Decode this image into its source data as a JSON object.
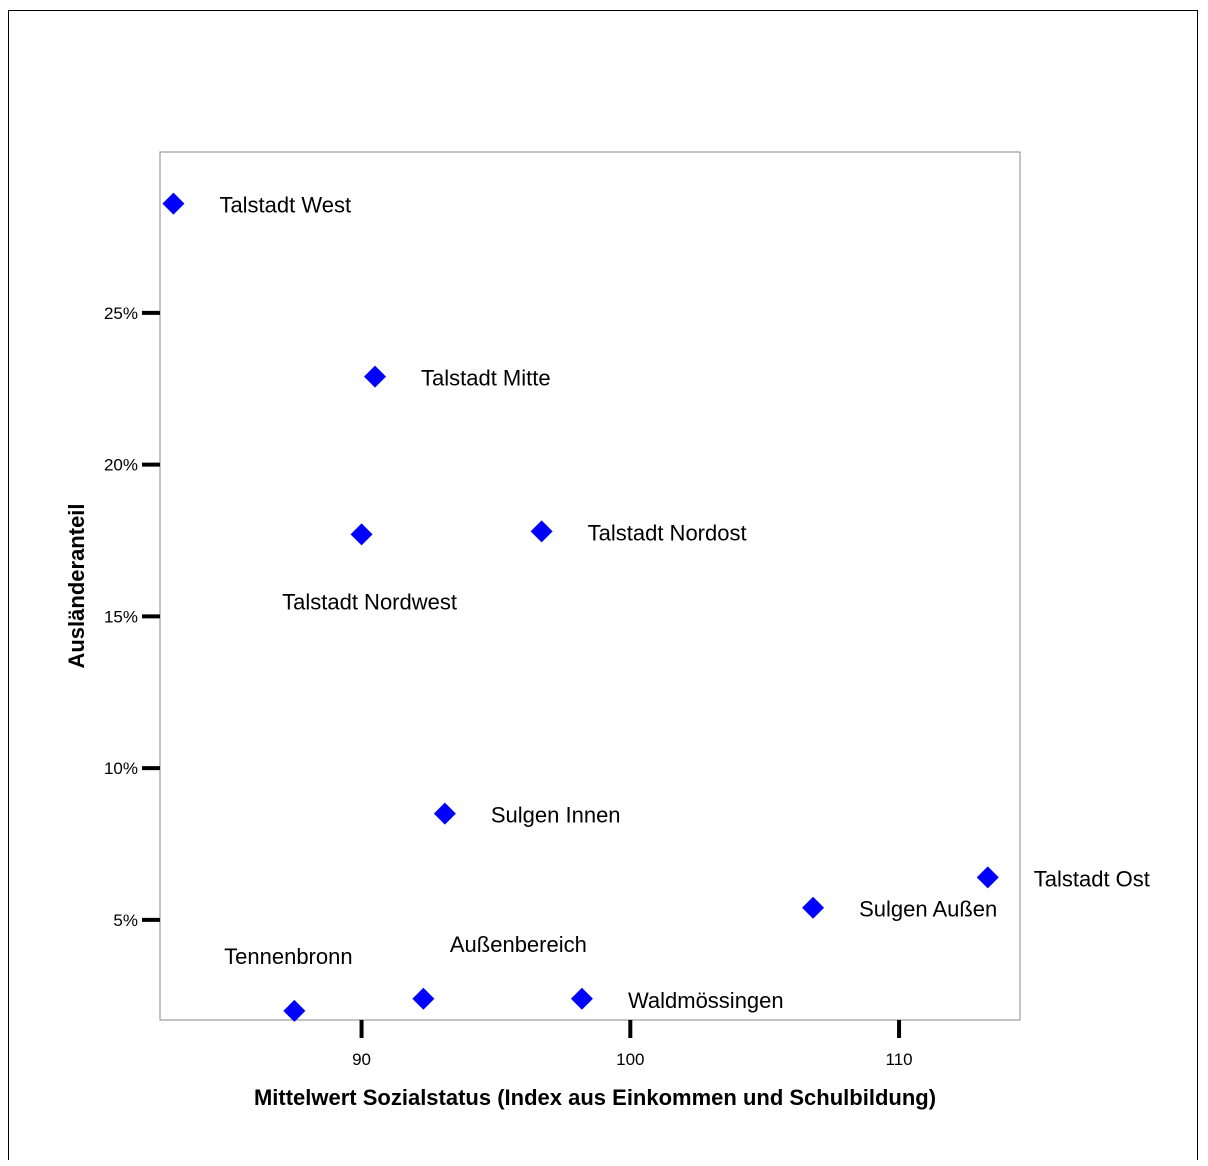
{
  "header_fragment": "",
  "chart_data": {
    "type": "scatter",
    "title": "",
    "xlabel": "Mittelwert Sozialstatus (Index aus Einkommen und Schulbildung)",
    "ylabel": "Ausländeranteil",
    "xlim": [
      82.5,
      114.5
    ],
    "ylim": [
      1.7,
      30.3
    ],
    "x_ticks": [
      90,
      100,
      110
    ],
    "x_tick_labels": [
      "90",
      "100",
      "110"
    ],
    "y_ticks": [
      5,
      10,
      15,
      20,
      25
    ],
    "y_tick_labels": [
      "5%",
      "10%",
      "15%",
      "20%",
      "25%"
    ],
    "marker_color": "#0000ff",
    "marker_shape": "diamond",
    "grid": false,
    "points": [
      {
        "label": "Talstadt West",
        "x": 83.0,
        "y": 28.6,
        "label_pos": "right"
      },
      {
        "label": "Talstadt Mitte",
        "x": 90.5,
        "y": 22.9,
        "label_pos": "right"
      },
      {
        "label": "Talstadt Nordwest",
        "x": 90.0,
        "y": 17.7,
        "label_pos": "below"
      },
      {
        "label": "Talstadt Nordost",
        "x": 96.7,
        "y": 17.8,
        "label_pos": "right"
      },
      {
        "label": "Sulgen Innen",
        "x": 93.1,
        "y": 8.5,
        "label_pos": "right"
      },
      {
        "label": "Talstadt Ost",
        "x": 113.3,
        "y": 6.4,
        "label_pos": "right"
      },
      {
        "label": "Sulgen Außen",
        "x": 106.8,
        "y": 5.4,
        "label_pos": "right"
      },
      {
        "label": "Tennenbronn",
        "x": 87.5,
        "y": 2.0,
        "label_pos": "above"
      },
      {
        "label": "Außenbereich",
        "x": 92.3,
        "y": 2.4,
        "label_pos": "above"
      },
      {
        "label": "Waldmössingen",
        "x": 98.2,
        "y": 2.4,
        "label_pos": "right"
      }
    ]
  }
}
